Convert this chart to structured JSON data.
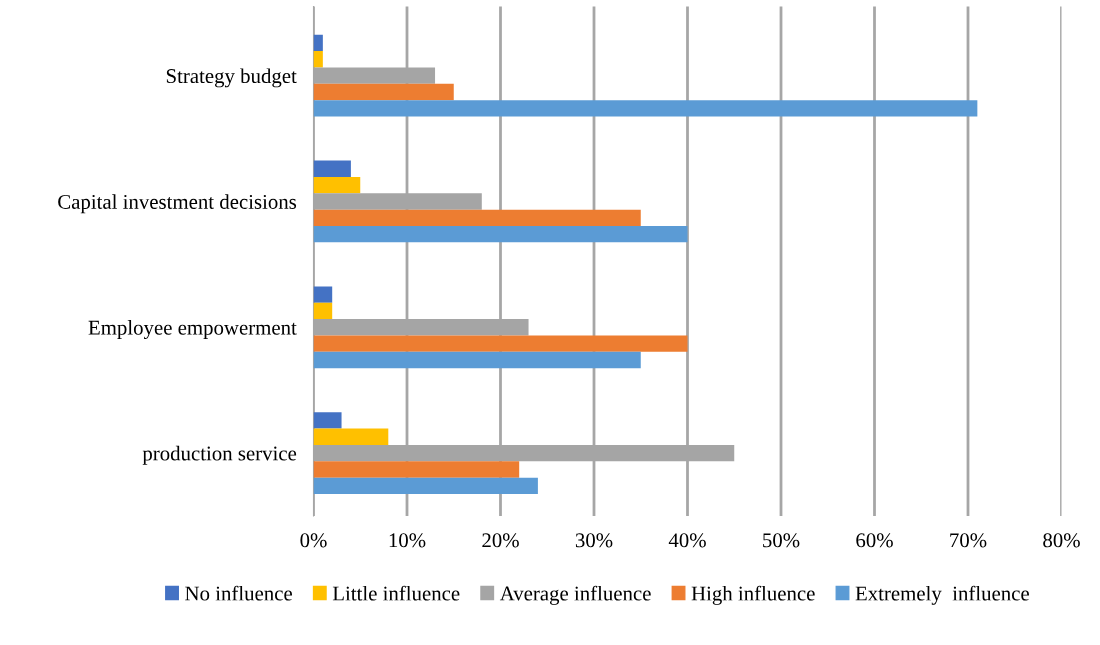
{
  "chart_data": {
    "type": "bar",
    "orientation": "horizontal",
    "categories": [
      "Strategy budget",
      "Capital investment decisions",
      "Employee empowerment",
      "production service"
    ],
    "series": [
      {
        "name": "No influence",
        "color": "#4472c4",
        "values": [
          1,
          4,
          2,
          3
        ]
      },
      {
        "name": "Little influence",
        "color": "#ffc000",
        "values": [
          1,
          5,
          2,
          8
        ]
      },
      {
        "name": "Average influence",
        "color": "#a5a5a5",
        "values": [
          13,
          18,
          23,
          45
        ]
      },
      {
        "name": "High influence",
        "color": "#ed7d31",
        "values": [
          15,
          35,
          40,
          22
        ]
      },
      {
        "name": "Extremely  influence",
        "color": "#5b9bd5",
        "values": [
          71,
          40,
          35,
          24
        ]
      }
    ],
    "xlim": [
      0,
      80
    ],
    "xticks": [
      {
        "value": 0,
        "label": "0%"
      },
      {
        "value": 10,
        "label": "10%"
      },
      {
        "value": 20,
        "label": "20%"
      },
      {
        "value": 30,
        "label": "30%"
      },
      {
        "value": 40,
        "label": "40%"
      },
      {
        "value": 50,
        "label": "50%"
      },
      {
        "value": 60,
        "label": "60%"
      },
      {
        "value": 70,
        "label": "70%"
      },
      {
        "value": 80,
        "label": "80%"
      }
    ],
    "grid": "x",
    "legend": "bottom"
  }
}
